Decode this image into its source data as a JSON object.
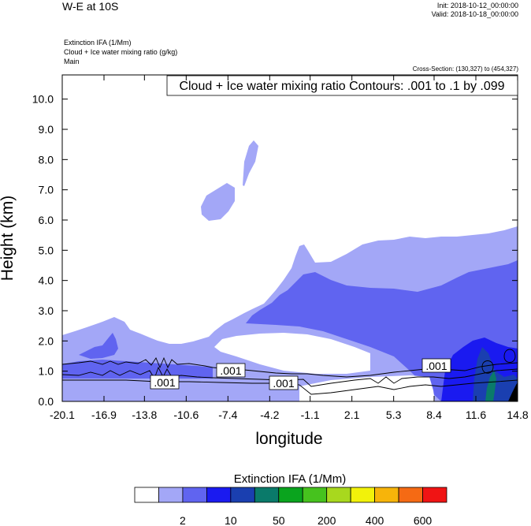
{
  "header": {
    "title": "W-E at 10S",
    "init": "Init: 2018-10-12_00:00:00",
    "valid": "Valid: 2018-10-18_00:00:00",
    "variables": [
      "Extinction IFA   (1/Mm)",
      "Cloud + Ice water mixing ratio   (g/kg)",
      "Main"
    ],
    "cross_section": "Cross-Section: (130,327) to (454,327)"
  },
  "chart_data": {
    "type": "heatmap",
    "title": "Cloud + Ice water mixing ratio Contours: .001 to .1 by .099",
    "xlabel": "longitude",
    "ylabel": "Height (km)",
    "xlim": [
      -20.1,
      14.8
    ],
    "ylim": [
      0.0,
      10.8
    ],
    "x_ticks": [
      "-20.1",
      "-16.9",
      "-13.8",
      "-10.6",
      "-7.4",
      "-4.2",
      "-1.1",
      "2.1",
      "5.3",
      "8.4",
      "11.6",
      "14.8"
    ],
    "y_ticks": [
      "0.0",
      "1.0",
      "2.0",
      "3.0",
      "4.0",
      "5.0",
      "6.0",
      "7.0",
      "8.0",
      "9.0",
      "10.0"
    ],
    "contour_labels": [
      {
        "text": ".001",
        "x": -12.3,
        "y": 0.6
      },
      {
        "text": ".001",
        "x": -6.9,
        "y": 1.0
      },
      {
        "text": ".001",
        "x": -3.1,
        "y": 0.6
      },
      {
        "text": ".001",
        "x": 8.5,
        "y": 1.2
      }
    ],
    "colorbar": {
      "title": "Extinction IFA  (1/Mm)",
      "labels": [
        {
          "text": "2",
          "index": 1
        },
        {
          "text": "10",
          "index": 3
        },
        {
          "text": "50",
          "index": 5
        },
        {
          "text": "200",
          "index": 7
        },
        {
          "text": "400",
          "index": 9
        },
        {
          "text": "600",
          "index": 11
        }
      ],
      "colors": [
        "#ffffff",
        "#a3a7f7",
        "#6064f0",
        "#1a1af0",
        "#1a3fb0",
        "#0a7a6a",
        "#0aa41e",
        "#46c21e",
        "#a8d81e",
        "#f2f20a",
        "#f7b40a",
        "#f56a14",
        "#f01414"
      ]
    },
    "fill_colors": {
      "light": "#a3a7f7",
      "medium": "#6064f0",
      "dark": "#1a1af0",
      "navy": "#1a3fb0",
      "teal": "#0a7a6a",
      "terrain": "#000000"
    }
  }
}
